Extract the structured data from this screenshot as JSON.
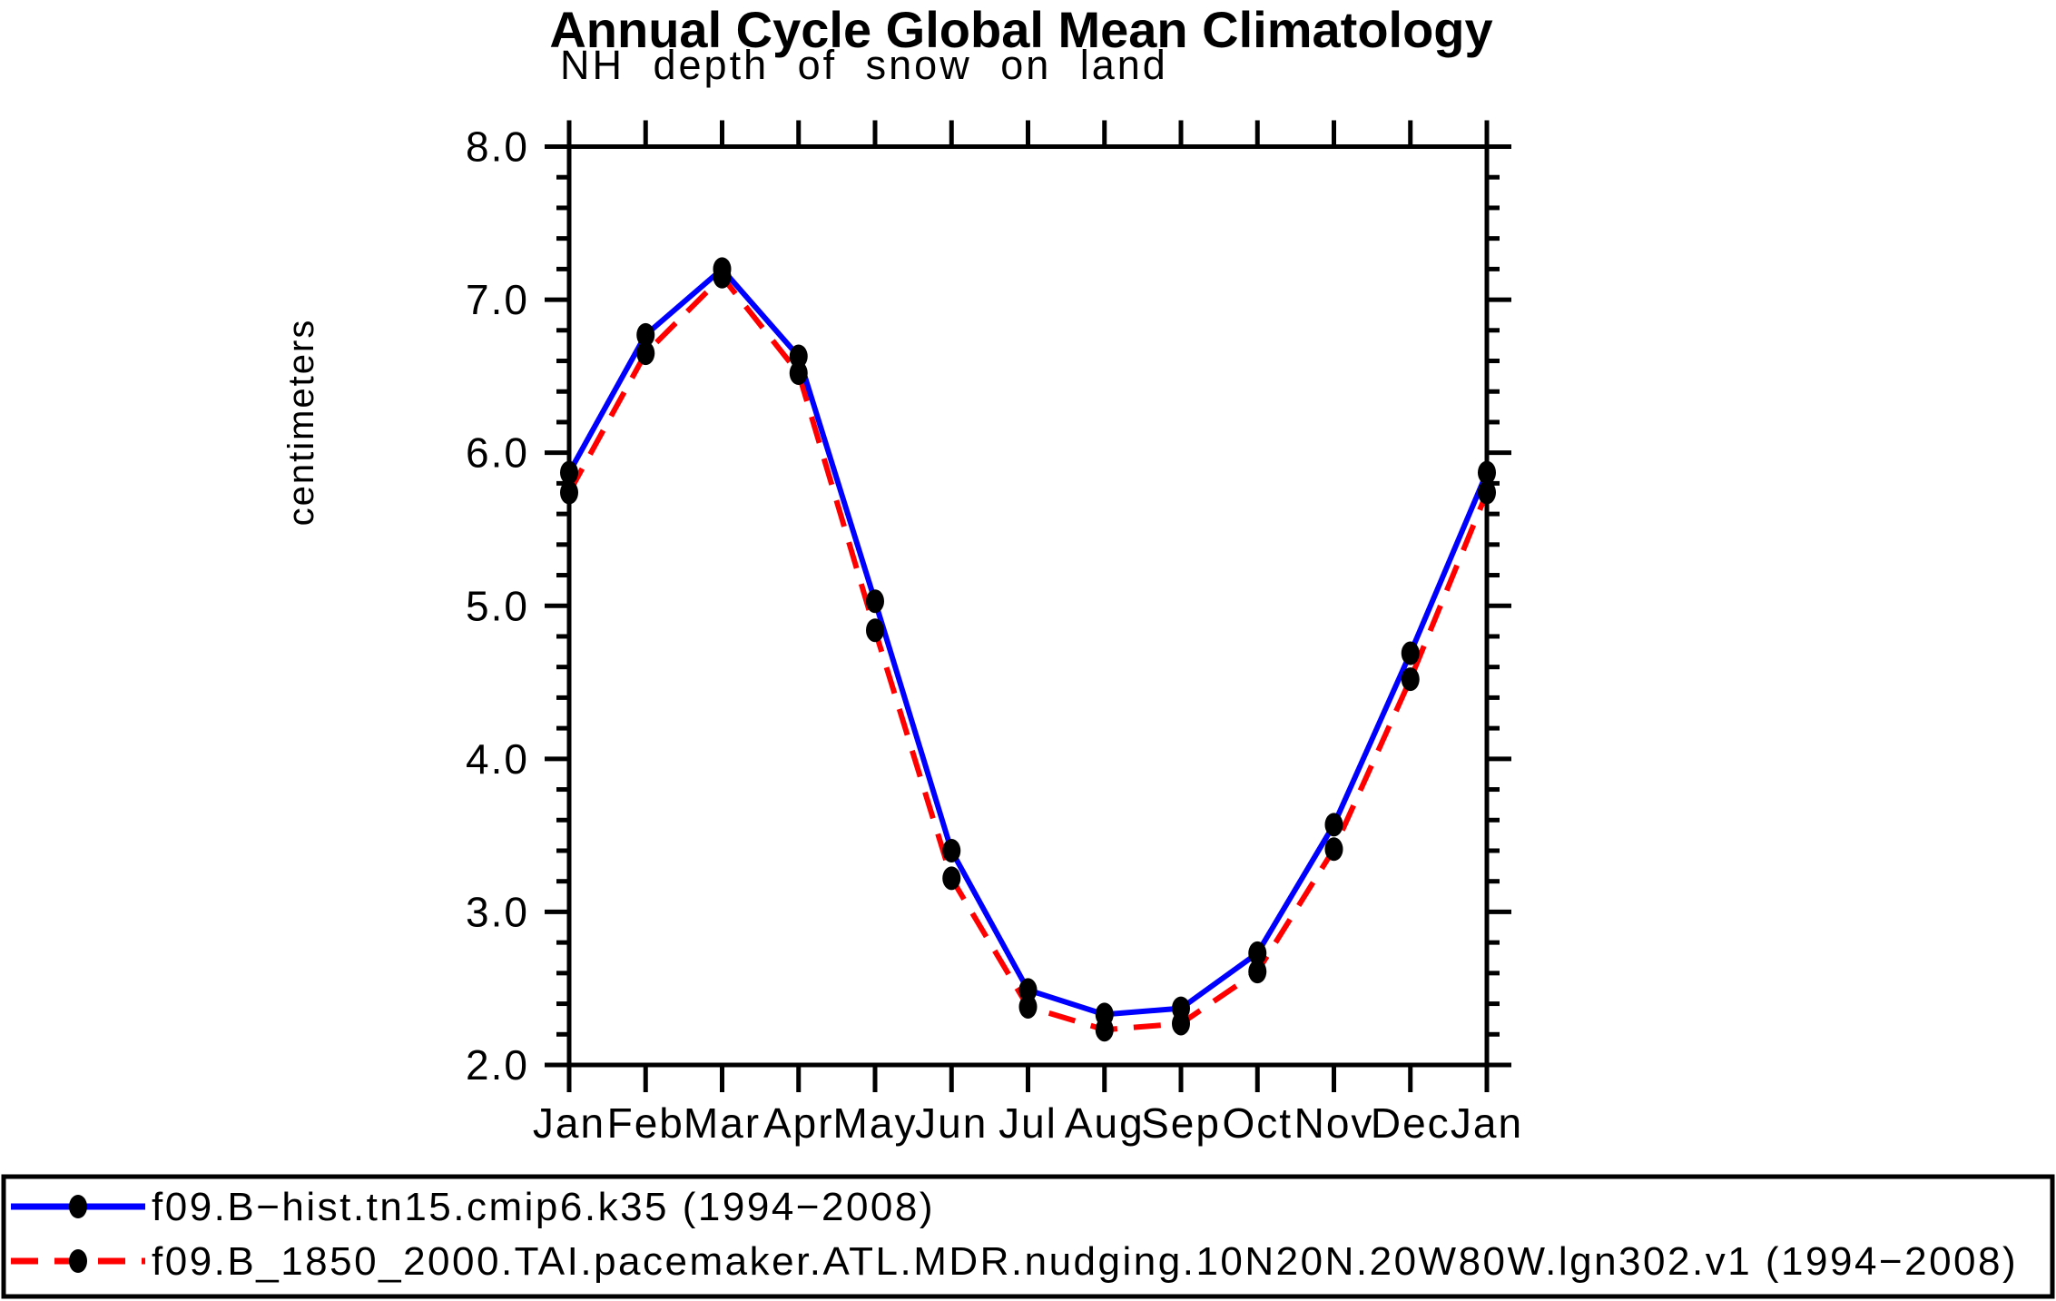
{
  "title": "Annual Cycle Global Mean Climatology",
  "subtitle": "NH depth of snow on land",
  "y_axis_label": "centimeters",
  "colors": {
    "series1_line": "#0000ff",
    "series2_line": "#ff0000",
    "marker": "#000000",
    "axis": "#000000",
    "background": "#ffffff"
  },
  "chart_data": {
    "type": "line",
    "title": "Annual Cycle Global Mean Climatology",
    "subtitle": "NH depth of snow on land",
    "xlabel": "",
    "ylabel": "centimeters",
    "categories": [
      "Jan",
      "Feb",
      "Mar",
      "Apr",
      "May",
      "Jun",
      "Jul",
      "Aug",
      "Sep",
      "Oct",
      "Nov",
      "Dec",
      "Jan"
    ],
    "series": [
      {
        "name": "f09.B−hist.tn15.cmip6.k35 (1994−2008)",
        "color": "#0000ff",
        "line_style": "solid",
        "marker": "black-filled-dot",
        "values": [
          5.87,
          6.77,
          7.2,
          6.63,
          5.03,
          3.4,
          2.49,
          2.33,
          2.37,
          2.73,
          3.57,
          4.69,
          5.87
        ]
      },
      {
        "name": "f09.B_1850_2000.TAI.pacemaker.ATL.MDR.nudging.10N20N.20W80W.lgn302.v1 (1994−2008)",
        "color": "#ff0000",
        "line_style": "dashed",
        "marker": "black-filled-dot",
        "values": [
          5.74,
          6.65,
          7.15,
          6.52,
          4.84,
          3.22,
          2.38,
          2.23,
          2.27,
          2.61,
          3.41,
          4.52,
          5.74
        ]
      }
    ],
    "ylim": [
      2.0,
      8.0
    ],
    "ytick_major_interval": 1.0,
    "ytick_minor_interval": 0.2,
    "ytick_labels": [
      "2.0",
      "3.0",
      "4.0",
      "5.0",
      "6.0",
      "7.0",
      "8.0"
    ],
    "grid": "off",
    "legend_position": "bottom-full-width-box"
  }
}
